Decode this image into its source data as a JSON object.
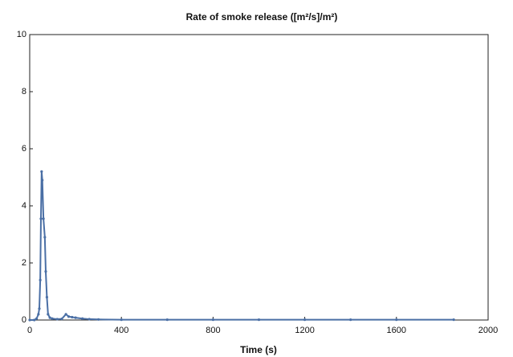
{
  "chart_data": {
    "type": "line",
    "title": "Rate of smoke release ([m²/s]/m²)",
    "x_label": "Time (s)",
    "x": [
      0,
      20,
      30,
      38,
      42,
      46,
      49,
      52,
      55,
      60,
      66,
      70,
      75,
      80,
      88,
      98,
      120,
      140,
      158,
      170,
      185,
      200,
      230,
      260,
      300,
      400,
      600,
      800,
      1000,
      1200,
      1400,
      1600,
      1850
    ],
    "series": [
      {
        "name": "Rate of smoke release",
        "color": "#4a6fa5",
        "values": [
          0,
          0,
          0.05,
          0.2,
          0.4,
          1.4,
          3.55,
          5.2,
          4.9,
          3.55,
          2.9,
          1.7,
          0.8,
          0.2,
          0.08,
          0.05,
          0.03,
          0.04,
          0.2,
          0.12,
          0.1,
          0.08,
          0.05,
          0.03,
          0.02,
          0.01,
          0.01,
          0.01,
          0.01,
          0.01,
          0.01,
          0.01,
          0.01
        ]
      }
    ],
    "xlim": [
      0,
      2000
    ],
    "xticks": [
      0,
      400,
      800,
      1200,
      1600,
      2000
    ],
    "ylim": [
      0,
      10
    ],
    "yticks": [
      0,
      2,
      4,
      6,
      8,
      10
    ],
    "grid": false
  }
}
